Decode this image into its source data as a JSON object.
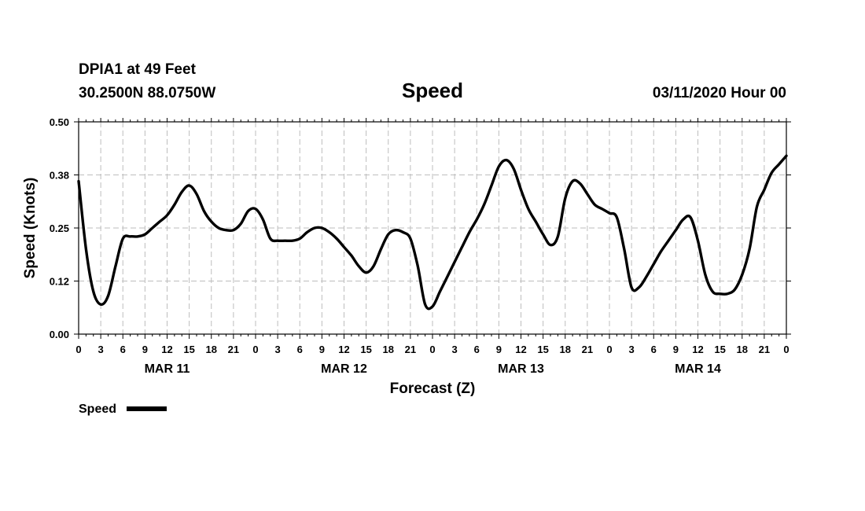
{
  "header": {
    "station": "DPIA1 at 49 Feet",
    "location": "30.2500N 88.0750W",
    "title": "Speed",
    "run": "03/11/2020 Hour 00"
  },
  "chart_data": {
    "type": "line",
    "title": "Speed",
    "xlabel": "Forecast (Z)",
    "ylabel": "Speed (Knots)",
    "xlim": [
      0,
      96
    ],
    "ylim": [
      0,
      0.5
    ],
    "y_ticks": [
      "0.00",
      "0.12",
      "0.25",
      "0.38",
      "0.50"
    ],
    "y_tick_values": [
      0,
      0.125,
      0.25,
      0.375,
      0.5
    ],
    "x_ticks": [
      "0",
      "3",
      "6",
      "9",
      "12",
      "15",
      "18",
      "21",
      "0",
      "3",
      "6",
      "9",
      "12",
      "15",
      "18",
      "21",
      "0",
      "3",
      "6",
      "9",
      "12",
      "15",
      "18",
      "21",
      "0",
      "3",
      "6",
      "9",
      "12",
      "15",
      "18",
      "21",
      "0"
    ],
    "x_tick_values": [
      0,
      3,
      6,
      9,
      12,
      15,
      18,
      21,
      24,
      27,
      30,
      33,
      36,
      39,
      42,
      45,
      48,
      51,
      54,
      57,
      60,
      63,
      66,
      69,
      72,
      75,
      78,
      81,
      84,
      87,
      90,
      93,
      96
    ],
    "day_labels": [
      "MAR 11",
      "MAR 12",
      "MAR 13",
      "MAR 14"
    ],
    "day_label_hours": [
      12,
      36,
      60,
      84
    ],
    "grid": true,
    "legend": {
      "placement": "bottom-left",
      "entries": [
        "Speed"
      ]
    },
    "series": [
      {
        "name": "Speed",
        "color": "#000000",
        "x": [
          0,
          1,
          2,
          3,
          4,
          5,
          6,
          7,
          8,
          9,
          10,
          11,
          12,
          13,
          14,
          15,
          16,
          17,
          18,
          19,
          20,
          21,
          22,
          23,
          24,
          25,
          26,
          27,
          28,
          29,
          30,
          31,
          32,
          33,
          34,
          35,
          36,
          37,
          38,
          39,
          40,
          41,
          42,
          43,
          44,
          45,
          46,
          47,
          48,
          49,
          50,
          51,
          52,
          53,
          54,
          55,
          56,
          57,
          58,
          59,
          60,
          61,
          62,
          63,
          64,
          65,
          66,
          67,
          68,
          69,
          70,
          71,
          72,
          73,
          74,
          75,
          76,
          77,
          78,
          79,
          80,
          81,
          82,
          83,
          84,
          85,
          86,
          87,
          88,
          89,
          90,
          91,
          92,
          93,
          94,
          95,
          96
        ],
        "values": [
          0.36,
          0.2,
          0.1,
          0.07,
          0.09,
          0.16,
          0.225,
          0.23,
          0.23,
          0.235,
          0.25,
          0.265,
          0.28,
          0.305,
          0.335,
          0.35,
          0.33,
          0.29,
          0.265,
          0.25,
          0.245,
          0.245,
          0.26,
          0.29,
          0.295,
          0.27,
          0.225,
          0.22,
          0.22,
          0.22,
          0.225,
          0.24,
          0.25,
          0.25,
          0.24,
          0.225,
          0.205,
          0.185,
          0.16,
          0.145,
          0.16,
          0.2,
          0.235,
          0.245,
          0.24,
          0.225,
          0.16,
          0.07,
          0.065,
          0.1,
          0.135,
          0.17,
          0.205,
          0.24,
          0.27,
          0.305,
          0.35,
          0.395,
          0.41,
          0.39,
          0.34,
          0.295,
          0.265,
          0.235,
          0.21,
          0.23,
          0.32,
          0.36,
          0.355,
          0.33,
          0.305,
          0.295,
          0.285,
          0.275,
          0.2,
          0.11,
          0.11,
          0.135,
          0.165,
          0.195,
          0.22,
          0.245,
          0.27,
          0.275,
          0.22,
          0.14,
          0.1,
          0.095,
          0.095,
          0.105,
          0.14,
          0.2,
          0.3,
          0.34,
          0.38,
          0.4,
          0.42
        ]
      }
    ]
  }
}
